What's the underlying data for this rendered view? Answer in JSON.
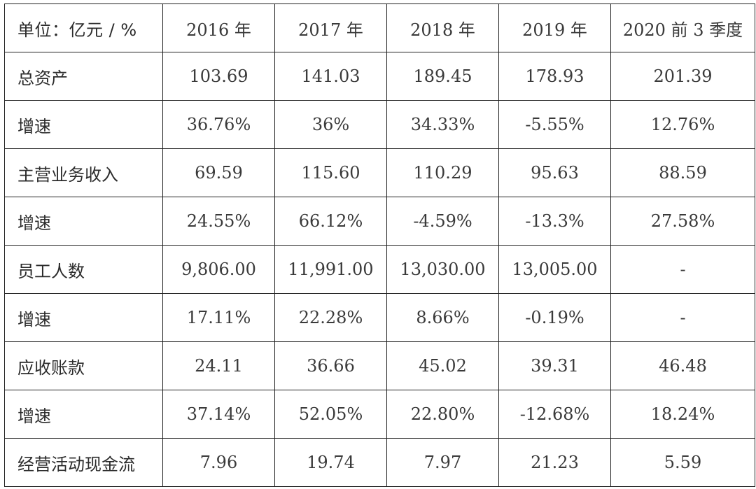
{
  "chart_data": {
    "type": "table",
    "columns": [
      "单位：亿元 / %",
      "2016 年",
      "2017 年",
      "2018 年",
      "2019 年",
      "2020 前 3 季度"
    ],
    "rows": [
      [
        "总资产",
        "103.69",
        "141.03",
        "189.45",
        "178.93",
        "201.39"
      ],
      [
        "增速",
        "36.76%",
        "36%",
        "34.33%",
        "-5.55%",
        "12.76%"
      ],
      [
        "主营业务收入",
        "69.59",
        "115.60",
        "110.29",
        "95.63",
        "88.59"
      ],
      [
        "增速",
        "24.55%",
        "66.12%",
        "-4.59%",
        "-13.3%",
        "27.58%"
      ],
      [
        "员工人数",
        "9,806.00",
        "11,991.00",
        "13,030.00",
        "13,005.00",
        "-"
      ],
      [
        "增速",
        "17.11%",
        "22.28%",
        "8.66%",
        "-0.19%",
        "-"
      ],
      [
        "应收账款",
        "24.11",
        "36.66",
        "45.02",
        "39.31",
        "46.48"
      ],
      [
        "增速",
        "37.14%",
        "52.05%",
        "22.80%",
        "-12.68%",
        "18.24%"
      ],
      [
        "经营活动现金流",
        "7.96",
        "19.74",
        "7.97",
        "21.23",
        "5.59"
      ]
    ]
  }
}
